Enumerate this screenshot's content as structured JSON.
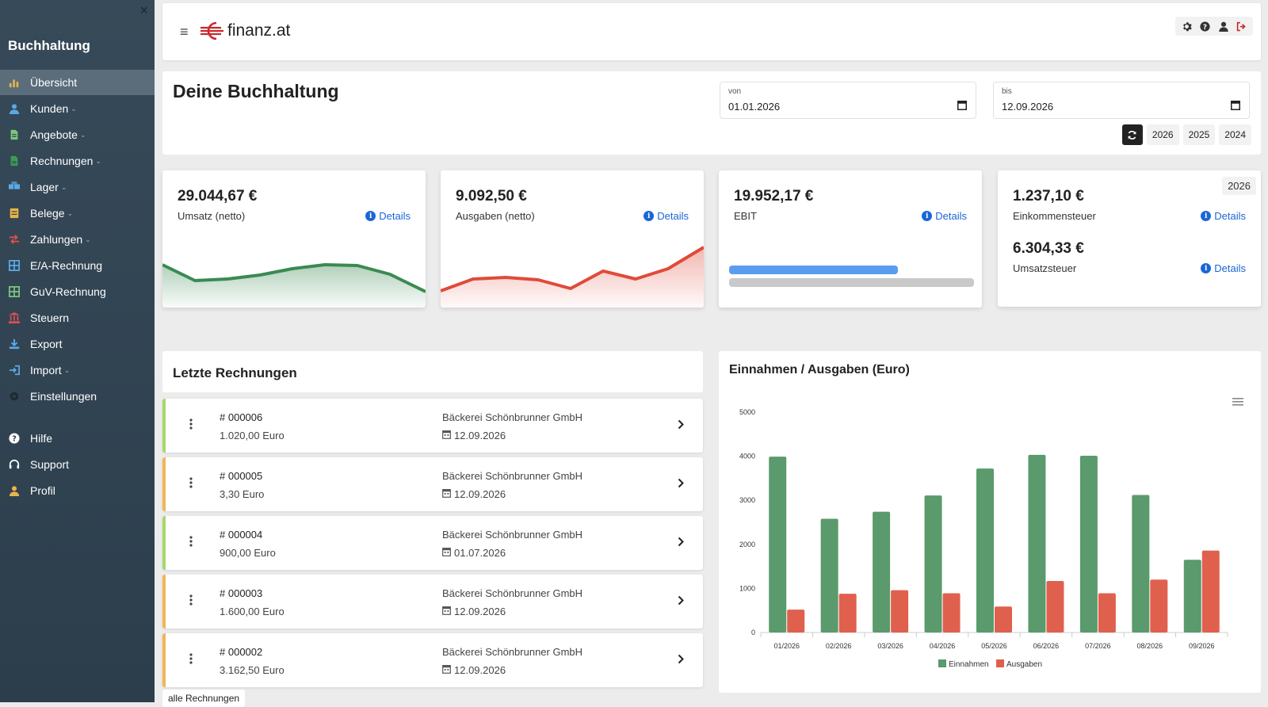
{
  "sidebar": {
    "title": "Buchhaltung",
    "close_glyph": "×",
    "items": [
      {
        "label": "Übersicht",
        "icon": "bar-chart-icon",
        "color": "#e8b44a",
        "chevron": false
      },
      {
        "label": "Kunden",
        "icon": "user-icon",
        "color": "#5aa9e6",
        "chevron": true
      },
      {
        "label": "Angebote",
        "icon": "document-icon",
        "color": "#7bc67e",
        "chevron": true
      },
      {
        "label": "Rechnungen",
        "icon": "invoice-icon",
        "color": "#3f9a55",
        "chevron": true
      },
      {
        "label": "Lager",
        "icon": "boxes-icon",
        "color": "#5aa9e6",
        "chevron": true
      },
      {
        "label": "Belege",
        "icon": "receipt-icon",
        "color": "#e8b44a",
        "chevron": true
      },
      {
        "label": "Zahlungen",
        "icon": "transfer-icon",
        "color": "#e05050",
        "chevron": true
      },
      {
        "label": "E/A-Rechnung",
        "icon": "table-icon",
        "color": "#5aa9e6",
        "chevron": false
      },
      {
        "label": "GuV-Rechnung",
        "icon": "table-icon",
        "color": "#7bc67e",
        "chevron": false
      },
      {
        "label": "Steuern",
        "icon": "bank-icon",
        "color": "#e05050",
        "chevron": false
      },
      {
        "label": "Export",
        "icon": "download-icon",
        "color": "#5aa9e6",
        "chevron": false
      },
      {
        "label": "Import",
        "icon": "import-icon",
        "color": "#5aa9e6",
        "chevron": true
      },
      {
        "label": "Einstellungen",
        "icon": "gear-icon",
        "color": "#1f2a33",
        "chevron": false
      },
      {
        "label": "Hilfe",
        "icon": "help-icon",
        "color": "#ffffff",
        "chevron": false
      },
      {
        "label": "Support",
        "icon": "headset-icon",
        "color": "#ffffff",
        "chevron": false
      },
      {
        "label": "Profil",
        "icon": "profile-icon",
        "color": "#e8b44a",
        "chevron": false
      }
    ]
  },
  "topbar": {
    "logo_text": "finanz.at",
    "brand_color": "#c8282d",
    "icons": [
      "settings-icon",
      "help-icon",
      "user-icon",
      "logout-icon"
    ]
  },
  "overview": {
    "title": "Deine Buchhaltung",
    "date_from": {
      "label": "von",
      "value": "01.01.2026"
    },
    "date_to": {
      "label": "bis",
      "value": "12.09.2026"
    },
    "year_buttons": [
      "2026",
      "2025",
      "2024"
    ]
  },
  "kpis": {
    "details_label": "Details",
    "umsatz": {
      "value": "29.044,67 €",
      "label": "Umsatz (netto)",
      "color": "#3a8a52"
    },
    "ausgaben": {
      "value": "9.092,50 €",
      "label": "Ausgaben (netto)",
      "color": "#e04a3a"
    },
    "ebit": {
      "value": "19.952,17 €",
      "label": "EBIT",
      "bar_fraction": 0.69,
      "bar_color": "#5b9cf0"
    },
    "steuer": {
      "year": "2026",
      "einkommen_value": "1.237,10 €",
      "einkommen_label": "Einkommensteuer",
      "umsatzsteuer_value": "6.304,33 €",
      "umsatzsteuer_label": "Umsatzsteuer"
    }
  },
  "invoices": {
    "title": "Letzte Rechnungen",
    "all_label": "alle Rechnungen",
    "hash": "#",
    "rows": [
      {
        "number": "000006",
        "amount": "1.020,00 Euro",
        "customer": "Bäckerei Schönbrunner GmbH",
        "date": "12.09.2026",
        "status_color": "#a6d96a"
      },
      {
        "number": "000005",
        "amount": "3,30 Euro",
        "customer": "Bäckerei Schönbrunner GmbH",
        "date": "12.09.2026",
        "status_color": "#f3b557"
      },
      {
        "number": "000004",
        "amount": "900,00 Euro",
        "customer": "Bäckerei Schönbrunner GmbH",
        "date": "01.07.2026",
        "status_color": "#a6d96a"
      },
      {
        "number": "000003",
        "amount": "1.600,00 Euro",
        "customer": "Bäckerei Schönbrunner GmbH",
        "date": "12.09.2026",
        "status_color": "#f3b557"
      },
      {
        "number": "000002",
        "amount": "3.162,50 Euro",
        "customer": "Bäckerei Schönbrunner GmbH",
        "date": "12.09.2026",
        "status_color": "#f3b557"
      }
    ]
  },
  "chart_data": {
    "type": "bar",
    "title": "Einnahmen / Ausgaben (Euro)",
    "categories": [
      "01/2026",
      "02/2026",
      "03/2026",
      "04/2026",
      "05/2026",
      "06/2026",
      "07/2026",
      "08/2026",
      "09/2026"
    ],
    "series": [
      {
        "name": "Einnahmen",
        "color": "#5a9a6c",
        "values": [
          3990,
          2580,
          2740,
          3110,
          3720,
          4030,
          4010,
          3120,
          1650
        ]
      },
      {
        "name": "Ausgaben",
        "color": "#e0604e",
        "values": [
          520,
          880,
          960,
          890,
          590,
          1170,
          890,
          1200,
          1860
        ]
      }
    ],
    "ylim": [
      0,
      5000
    ],
    "yticks": [
      0,
      1000,
      2000,
      3000,
      4000,
      5000
    ],
    "legend": "bottom-center",
    "grid": false
  }
}
